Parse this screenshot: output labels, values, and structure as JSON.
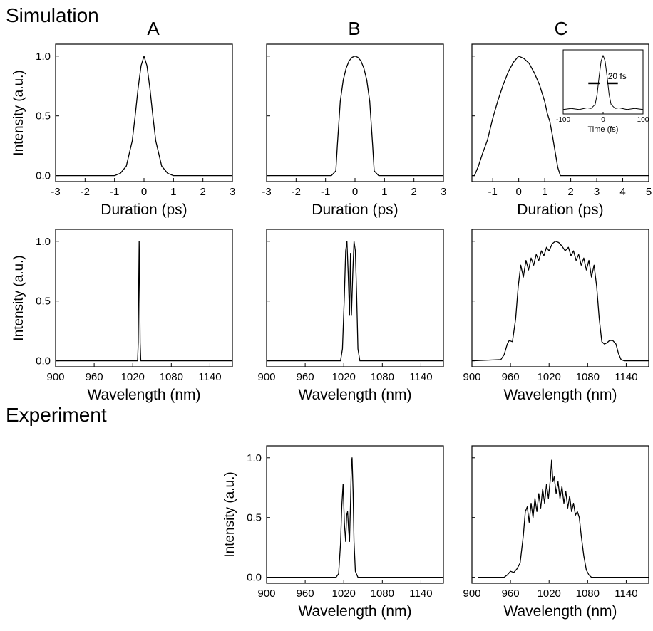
{
  "sections": {
    "simulation": "Simulation",
    "experiment": "Experiment"
  },
  "columns": [
    "A",
    "B",
    "C"
  ],
  "chart_data": [
    {
      "id": "sim-a-time",
      "type": "line",
      "xlabel": "Duration (ps)",
      "ylabel": "Intensity (a.u.)",
      "xlim": [
        -3,
        3
      ],
      "ylim": [
        -0.05,
        1.1
      ],
      "xticks": [
        "-3",
        "-2",
        "-1",
        "0",
        "1",
        "2",
        "3"
      ],
      "yticks": [
        "0.0",
        "0.5",
        "1.0"
      ],
      "x": [
        -3,
        -1.0,
        -0.8,
        -0.6,
        -0.4,
        -0.3,
        -0.2,
        -0.1,
        0,
        0.1,
        0.2,
        0.3,
        0.4,
        0.6,
        0.8,
        1.0,
        3
      ],
      "y": [
        0,
        0.0,
        0.02,
        0.08,
        0.29,
        0.5,
        0.73,
        0.92,
        1.0,
        0.92,
        0.73,
        0.5,
        0.29,
        0.08,
        0.02,
        0.0,
        0
      ]
    },
    {
      "id": "sim-b-time",
      "type": "line",
      "xlabel": "Duration (ps)",
      "ylabel": "",
      "xlim": [
        -3,
        3
      ],
      "ylim": [
        -0.05,
        1.1
      ],
      "xticks": [
        "-3",
        "-2",
        "-1",
        "0",
        "1",
        "2",
        "3"
      ],
      "yticks": [],
      "x": [
        -3,
        -0.8,
        -0.65,
        -0.6,
        -0.5,
        -0.4,
        -0.3,
        -0.2,
        -0.1,
        0,
        0.1,
        0.2,
        0.3,
        0.4,
        0.5,
        0.6,
        0.65,
        0.8,
        3
      ],
      "y": [
        0,
        0,
        0.04,
        0.25,
        0.62,
        0.8,
        0.9,
        0.96,
        0.99,
        1.0,
        0.99,
        0.96,
        0.9,
        0.8,
        0.62,
        0.25,
        0.04,
        0,
        0
      ]
    },
    {
      "id": "sim-c-time",
      "type": "line",
      "xlabel": "Duration (ps)",
      "ylabel": "",
      "xlim": [
        -1.8,
        5
      ],
      "ylim": [
        -0.05,
        1.1
      ],
      "xticks": [
        "-1",
        "0",
        "1",
        "2",
        "3",
        "4",
        "5"
      ],
      "yticks": [],
      "x": [
        -1.8,
        -1.7,
        -1.55,
        -1.4,
        -1.2,
        -1.0,
        -0.8,
        -0.6,
        -0.4,
        -0.2,
        0,
        0.2,
        0.4,
        0.6,
        0.8,
        1.0,
        1.1,
        1.2,
        1.3,
        1.4,
        1.5,
        1.6,
        5
      ],
      "y": [
        0,
        0,
        0.08,
        0.18,
        0.3,
        0.48,
        0.63,
        0.76,
        0.87,
        0.95,
        1.0,
        0.98,
        0.94,
        0.86,
        0.76,
        0.62,
        0.52,
        0.45,
        0.33,
        0.2,
        0.07,
        0,
        0
      ]
    },
    {
      "id": "sim-c-inset",
      "type": "line",
      "xlabel": "Time (fs)",
      "ylabel": "",
      "xlim": [
        -100,
        100
      ],
      "ylim": [
        -0.05,
        1.1
      ],
      "xticks": [
        "-100",
        "0",
        "100"
      ],
      "yticks": [],
      "annotation": "20 fs",
      "x": [
        -100,
        -80,
        -60,
        -40,
        -30,
        -20,
        -15,
        -10,
        -5,
        0,
        5,
        10,
        15,
        20,
        30,
        40,
        60,
        80,
        100
      ],
      "y": [
        0.03,
        0.05,
        0.03,
        0.06,
        0.05,
        0.12,
        0.3,
        0.62,
        0.9,
        1.0,
        0.9,
        0.62,
        0.3,
        0.12,
        0.05,
        0.06,
        0.03,
        0.05,
        0.03
      ]
    },
    {
      "id": "sim-a-spec",
      "type": "line",
      "xlabel": "Wavelength (nm)",
      "ylabel": "Intensity (a.u.)",
      "xlim": [
        900,
        1175
      ],
      "ylim": [
        -0.05,
        1.1
      ],
      "xticks": [
        "900",
        "960",
        "1020",
        "1080",
        "1140"
      ],
      "yticks": [
        "0.0",
        "0.5",
        "1.0"
      ],
      "x": [
        900,
        1027.5,
        1028.5,
        1029.3,
        1030,
        1030.7,
        1031.5,
        1032.5,
        1175
      ],
      "y": [
        0,
        0,
        0.15,
        0.65,
        1.0,
        0.65,
        0.15,
        0,
        0
      ]
    },
    {
      "id": "sim-b-spec",
      "type": "line",
      "xlabel": "Wavelength (nm)",
      "ylabel": "",
      "xlim": [
        900,
        1175
      ],
      "ylim": [
        -0.05,
        1.1
      ],
      "xticks": [
        "900",
        "960",
        "1020",
        "1080",
        "1140"
      ],
      "yticks": [],
      "x": [
        900,
        1015,
        1018,
        1021,
        1023,
        1025,
        1027,
        1029,
        1030.5,
        1032,
        1034,
        1036,
        1038,
        1040,
        1042,
        1045,
        1175
      ],
      "y": [
        0,
        0,
        0.1,
        0.55,
        0.92,
        1.0,
        0.72,
        0.38,
        0.9,
        0.38,
        0.72,
        1.0,
        0.92,
        0.55,
        0.1,
        0,
        0
      ]
    },
    {
      "id": "sim-c-spec",
      "type": "line",
      "xlabel": "Wavelength (nm)",
      "ylabel": "",
      "xlim": [
        900,
        1175
      ],
      "ylim": [
        -0.05,
        1.1
      ],
      "xticks": [
        "900",
        "960",
        "1020",
        "1080",
        "1140"
      ],
      "yticks": [],
      "x": [
        900,
        945,
        950,
        955,
        958,
        963,
        968,
        972,
        976,
        980,
        984,
        988,
        992,
        996,
        1000,
        1004,
        1008,
        1012,
        1016,
        1020,
        1025,
        1030,
        1035,
        1040,
        1045,
        1050,
        1054,
        1058,
        1062,
        1066,
        1070,
        1074,
        1078,
        1082,
        1086,
        1090,
        1094,
        1098,
        1102,
        1106,
        1110,
        1114,
        1119,
        1124,
        1128,
        1132,
        1137,
        1175
      ],
      "y": [
        0,
        0.01,
        0.05,
        0.14,
        0.17,
        0.16,
        0.35,
        0.62,
        0.8,
        0.7,
        0.84,
        0.76,
        0.86,
        0.8,
        0.89,
        0.84,
        0.92,
        0.88,
        0.95,
        0.92,
        0.98,
        1.0,
        0.99,
        0.96,
        0.92,
        0.95,
        0.88,
        0.92,
        0.84,
        0.89,
        0.8,
        0.86,
        0.76,
        0.84,
        0.7,
        0.8,
        0.62,
        0.35,
        0.16,
        0.14,
        0.15,
        0.17,
        0.17,
        0.14,
        0.06,
        0.01,
        0,
        0
      ]
    },
    {
      "id": "exp-b-spec",
      "type": "line",
      "xlabel": "Wavelength (nm)",
      "ylabel": "Intensity (a.u.)",
      "xlim": [
        900,
        1175
      ],
      "ylim": [
        -0.05,
        1.1
      ],
      "xticks": [
        "900",
        "960",
        "1020",
        "1080",
        "1140"
      ],
      "yticks": [
        "0.0",
        "0.5",
        "1.0"
      ],
      "x": [
        900,
        1008,
        1012,
        1015,
        1017,
        1019,
        1021,
        1023,
        1024.5,
        1026,
        1027.5,
        1029,
        1030.5,
        1032,
        1033,
        1034.5,
        1036,
        1038,
        1042,
        1175
      ],
      "y": [
        0,
        0,
        0.03,
        0.28,
        0.6,
        0.78,
        0.45,
        0.3,
        0.52,
        0.55,
        0.4,
        0.3,
        0.62,
        0.95,
        1.0,
        0.72,
        0.3,
        0.05,
        0,
        0
      ]
    },
    {
      "id": "exp-c-spec",
      "type": "line",
      "xlabel": "Wavelength (nm)",
      "ylabel": "",
      "xlim": [
        900,
        1175
      ],
      "ylim": [
        -0.05,
        1.1
      ],
      "xticks": [
        "900",
        "960",
        "1020",
        "1080",
        "1140"
      ],
      "yticks": [],
      "x": [
        910,
        950,
        955,
        960,
        965,
        970,
        975,
        980,
        983,
        986,
        989,
        992,
        995,
        998,
        1001,
        1004,
        1007,
        1010,
        1013,
        1016,
        1019,
        1022,
        1024,
        1026,
        1028,
        1031,
        1034,
        1037,
        1040,
        1043,
        1046,
        1049,
        1052,
        1055,
        1058,
        1061,
        1064,
        1067,
        1070,
        1074,
        1078,
        1082,
        1086,
        1090,
        1100,
        1110,
        1175
      ],
      "y": [
        0,
        0,
        0.02,
        0.05,
        0.04,
        0.07,
        0.12,
        0.35,
        0.55,
        0.59,
        0.46,
        0.62,
        0.5,
        0.66,
        0.55,
        0.7,
        0.58,
        0.74,
        0.62,
        0.78,
        0.66,
        0.82,
        0.98,
        0.8,
        0.84,
        0.7,
        0.8,
        0.66,
        0.76,
        0.62,
        0.72,
        0.58,
        0.68,
        0.55,
        0.62,
        0.52,
        0.55,
        0.5,
        0.35,
        0.18,
        0.06,
        0.02,
        0,
        0,
        0,
        0,
        0
      ]
    }
  ]
}
